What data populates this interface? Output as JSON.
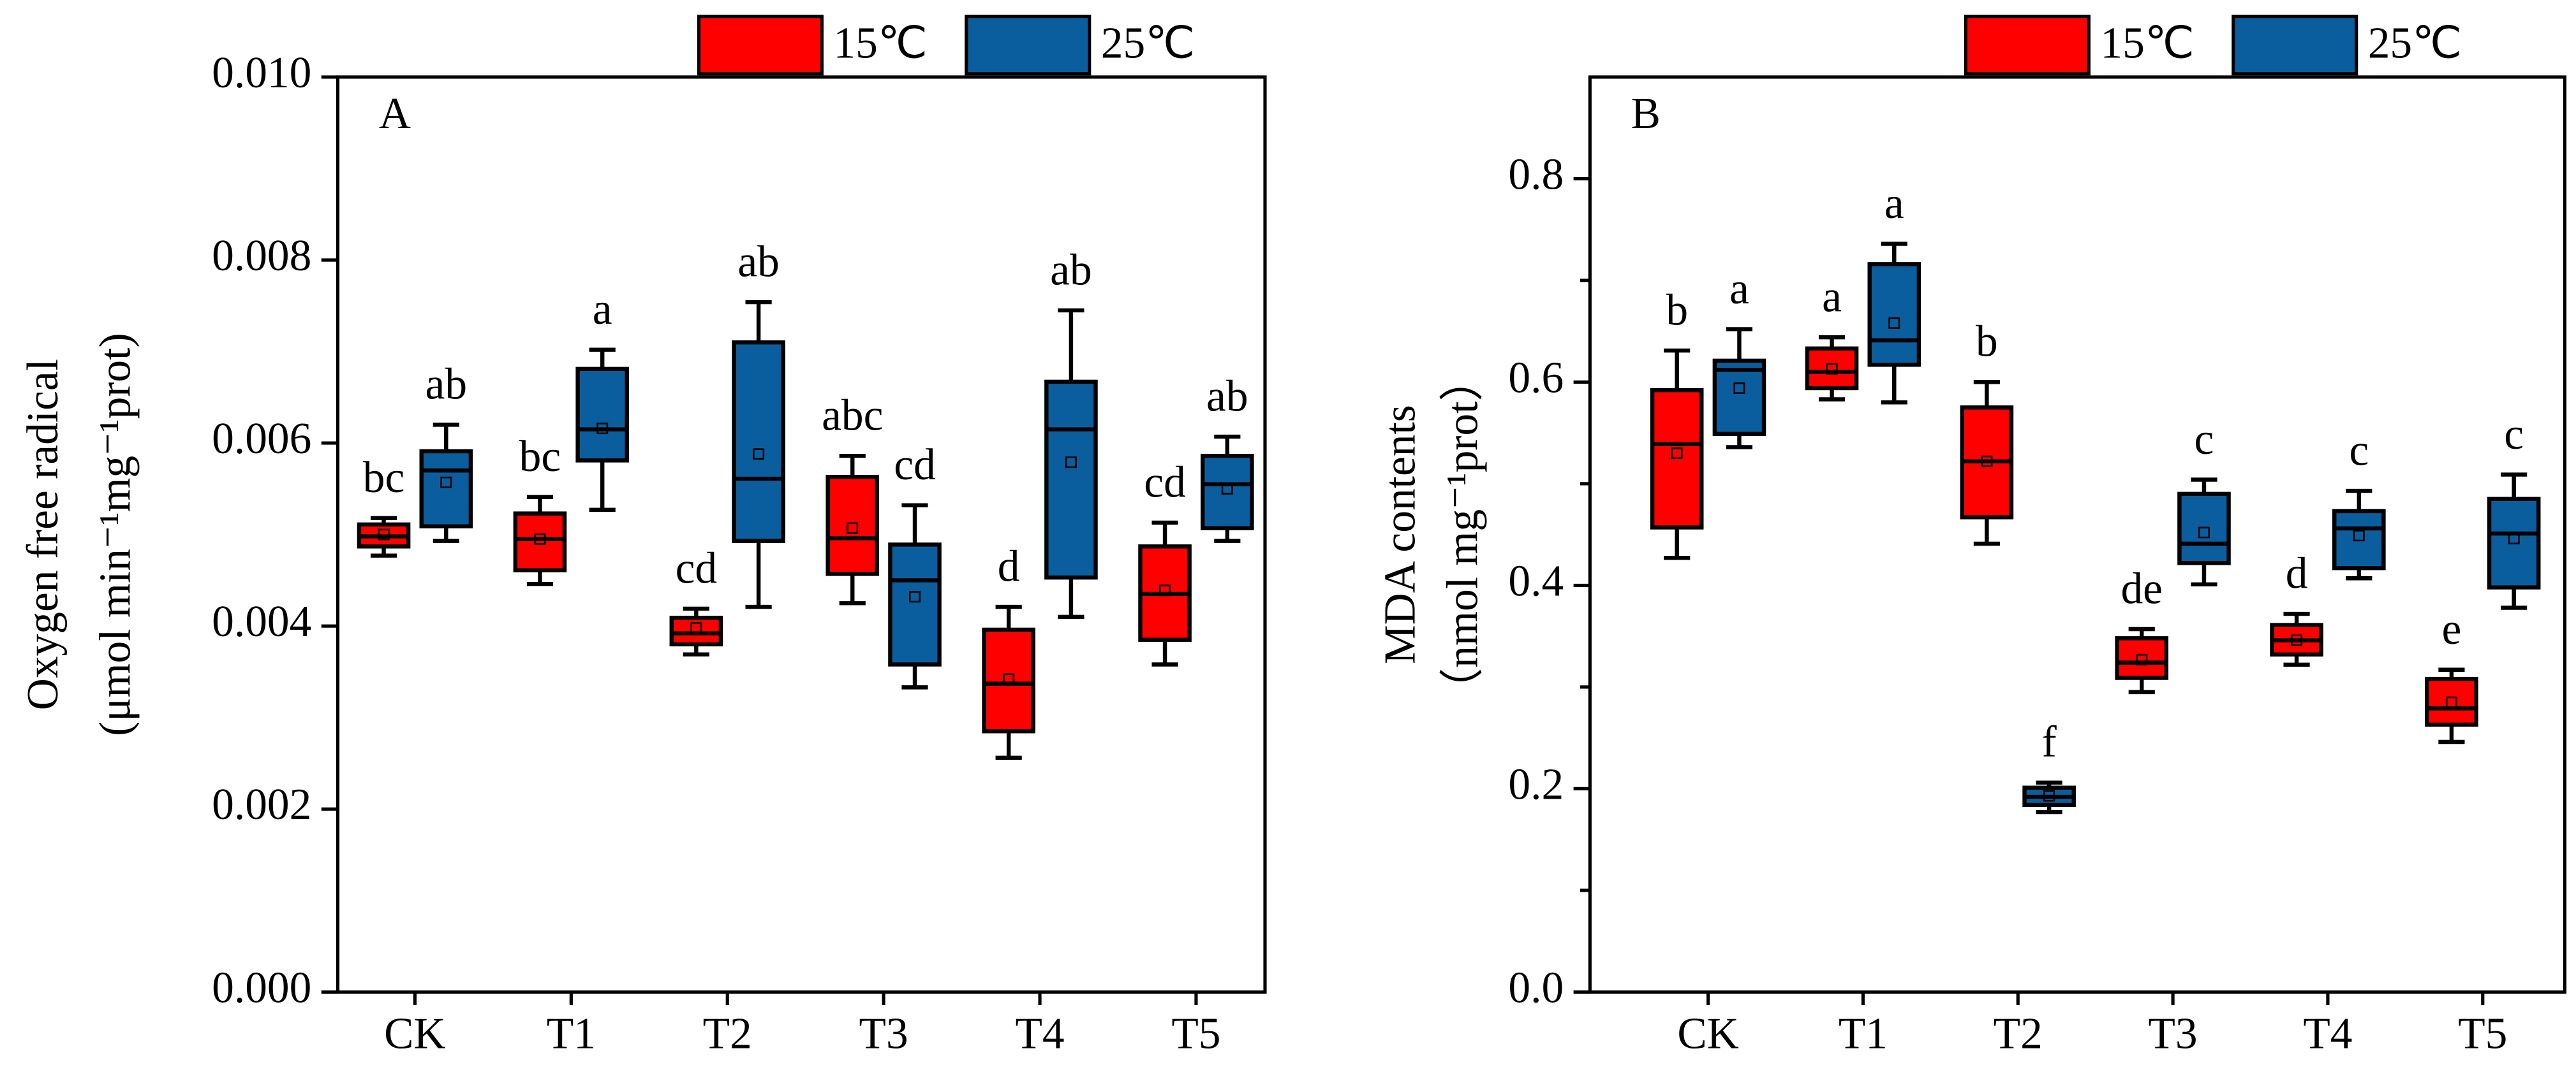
{
  "chart_data": [
    {
      "type": "box",
      "panel_label": "A",
      "ylabel": [
        "Oxygen free radical",
        "(μmol min⁻¹mg⁻¹prot)"
      ],
      "categories": [
        "CK",
        "T1",
        "T2",
        "T3",
        "T4",
        "T5"
      ],
      "ylim": [
        0,
        0.01
      ],
      "yticks": [
        {
          "value": 0,
          "label": "0.000"
        },
        0.002,
        0.004,
        0.006,
        0.008,
        {
          "value": 0.01,
          "label": "0.010"
        }
      ],
      "series": [
        {
          "name": "15℃",
          "color": "#ff0000",
          "whisker_low": [
            0.00477,
            0.00446,
            0.00369,
            0.00425,
            0.00256,
            0.00358
          ],
          "q1": [
            0.00487,
            0.00461,
            0.0038,
            0.00457,
            0.00285,
            0.00385
          ],
          "median": [
            0.00498,
            0.00495,
            0.00392,
            0.00496,
            0.00337,
            0.00435
          ],
          "q3": [
            0.00511,
            0.00523,
            0.00409,
            0.00563,
            0.00396,
            0.00487
          ],
          "whisker_high": [
            0.00518,
            0.00541,
            0.00419,
            0.00586,
            0.00421,
            0.00513
          ],
          "mean": [
            0.005,
            0.00495,
            0.00398,
            0.00507,
            0.00342,
            0.00439
          ],
          "annotations": [
            "bc",
            "bc",
            "cd",
            "abc",
            "d",
            "cd"
          ]
        },
        {
          "name": "25℃",
          "color": "#0b5e9e",
          "whisker_low": [
            0.00493,
            0.00527,
            0.00421,
            0.00333,
            0.0041,
            0.00493
          ],
          "q1": [
            0.00509,
            0.00581,
            0.00493,
            0.00358,
            0.00453,
            0.00507
          ],
          "median": [
            0.0057,
            0.00615,
            0.00561,
            0.0045,
            0.00615,
            0.00555
          ],
          "q3": [
            0.00591,
            0.00681,
            0.0071,
            0.00489,
            0.00667,
            0.00586
          ],
          "whisker_high": [
            0.0062,
            0.00702,
            0.00754,
            0.00532,
            0.00745,
            0.00607
          ],
          "mean": [
            0.00557,
            0.00616,
            0.00588,
            0.00432,
            0.00579,
            0.0055
          ],
          "annotations": [
            "ab",
            "a",
            "ab",
            "cd",
            "ab",
            "ab"
          ]
        }
      ]
    },
    {
      "type": "box",
      "panel_label": "B",
      "ylabel": [
        "MDA contents",
        "（nmol mg⁻¹prot）"
      ],
      "categories": [
        "CK",
        "T1",
        "T2",
        "T3",
        "T4",
        "T5"
      ],
      "ylim": [
        0,
        0.9
      ],
      "yticks": [
        {
          "value": 0,
          "label": "0.0"
        },
        0.2,
        0.4,
        0.6,
        0.8
      ],
      "yminor_ticks": [
        0.1,
        0.3,
        0.5,
        0.7
      ],
      "series": [
        {
          "name": "15℃",
          "color": "#ff0000",
          "whisker_low": [
            0.427,
            0.583,
            0.441,
            0.295,
            0.322,
            0.246
          ],
          "q1": [
            0.457,
            0.594,
            0.467,
            0.309,
            0.332,
            0.263
          ],
          "median": [
            0.539,
            0.61,
            0.522,
            0.324,
            0.346,
            0.279
          ],
          "q3": [
            0.592,
            0.633,
            0.575,
            0.348,
            0.361,
            0.308
          ],
          "whisker_high": [
            0.631,
            0.644,
            0.6,
            0.357,
            0.372,
            0.317
          ],
          "mean": [
            0.53,
            0.613,
            0.522,
            0.327,
            0.346,
            0.285
          ],
          "annotations": [
            "b",
            "a",
            "b",
            "de",
            "d",
            "e"
          ]
        },
        {
          "name": "25℃",
          "color": "#0b5e9e",
          "whisker_low": [
            0.536,
            0.58,
            0.177,
            0.401,
            0.407,
            0.378
          ],
          "q1": [
            0.549,
            0.617,
            0.184,
            0.422,
            0.417,
            0.398
          ],
          "median": [
            0.612,
            0.641,
            0.192,
            0.441,
            0.456,
            0.451
          ],
          "q3": [
            0.621,
            0.716,
            0.201,
            0.49,
            0.473,
            0.485
          ],
          "whisker_high": [
            0.652,
            0.736,
            0.206,
            0.504,
            0.493,
            0.509
          ],
          "mean": [
            0.594,
            0.658,
            0.193,
            0.452,
            0.449,
            0.446
          ],
          "annotations": [
            "a",
            "a",
            "f",
            "c",
            "c",
            "c"
          ]
        }
      ]
    }
  ]
}
